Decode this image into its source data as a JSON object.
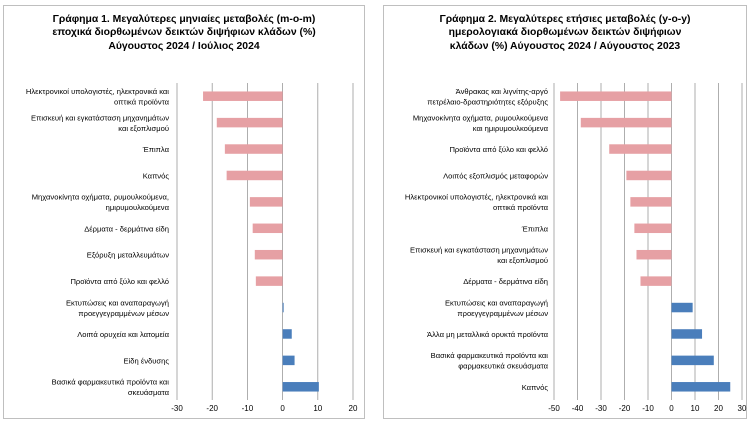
{
  "colors": {
    "negative": "#E6A0A4",
    "positive": "#4A7EBB",
    "gridline": "#9A9A9A",
    "border": "#BFBFBF"
  },
  "chart_data": [
    {
      "type": "bar",
      "orientation": "horizontal",
      "title_lines": [
        "Γράφημα 1. Μεγαλύτερες μηνιαίες μεταβολές (m-o-m)",
        "εποχικά διορθωμένων δεικτών διψήφιων κλάδων (%)",
        "Αύγουστος 2024 / Ιούλιος  2024"
      ],
      "categories": [
        [
          "Ηλεκτρονικοί υπολογιστές, ηλεκτρονικά και",
          "οπτικά προϊόντα"
        ],
        [
          "Επισκευή και εγκατάσταση μηχανημάτων",
          "και εξοπλισμού"
        ],
        [
          "Έπιπλα"
        ],
        [
          "Καπνός"
        ],
        [
          "Μηχανοκίνητα οχήματα, ρυμουλκούμενα,",
          "ημιρυμουλκούμενα"
        ],
        [
          "Δέρματα - δερμάτινα είδη"
        ],
        [
          "Εξόρυξη μεταλλευμάτων"
        ],
        [
          "Προϊόντα από ξύλο και φελλό"
        ],
        [
          "Εκτυπώσεις και αναπαραγωγή",
          "προεγγεγραμμένων μέσων"
        ],
        [
          "Λοιπά ορυχεία και λατομεία"
        ],
        [
          "Είδη ένδυσης"
        ],
        [
          "Βασικά φαρμακευτικά προϊόντα και",
          "σκευάσματα"
        ]
      ],
      "values": [
        -22.6,
        -18.7,
        -16.4,
        -15.9,
        -9.3,
        -8.5,
        -7.9,
        -7.6,
        0.3,
        2.6,
        3.4,
        10.3
      ],
      "xlim": [
        -30,
        20
      ],
      "xticks": [
        -30,
        -20,
        -10,
        0,
        10,
        20
      ],
      "grid": "vertical"
    },
    {
      "type": "bar",
      "orientation": "horizontal",
      "title_lines": [
        "Γράφημα 2. Μεγαλύτερες ετήσιες μεταβολές (y-o-y)",
        "ημερολογιακά διορθωμένων δεικτών διψήφιων",
        "κλάδων (%) Αύγουστος  2024 / Αύγουστος  2023"
      ],
      "categories": [
        [
          "Άνθρακας και λιγνίτης-αργό",
          "πετρέλαιο-δραστηριότητες εξόρυξης"
        ],
        [
          "Μηχανοκίνητα οχήματα, ρυμουλκούμενα",
          "και ημιρυμουλκούμενα"
        ],
        [
          "Προϊόντα από ξύλο και φελλό"
        ],
        [
          "Λοιπός εξοπλισμός μεταφορών"
        ],
        [
          "Ηλεκτρονικοί υπολογιστές, ηλεκτρονικά και",
          "οπτικά προϊόντα"
        ],
        [
          "Έπιπλα"
        ],
        [
          "Επισκευή και εγκατάσταση μηχανημάτων",
          "και εξοπλισμού"
        ],
        [
          "Δέρματα - δερμάτινα είδη"
        ],
        [
          "Εκτυπώσεις και αναπαραγωγή",
          "προεγγεγραμμένων μέσων"
        ],
        [
          "Άλλα μη μεταλλικά ορυκτά προϊόντα"
        ],
        [
          "Βασικά φαρμακευτικά προϊόντα και",
          "φαρμακευτικά σκευάσματα"
        ],
        [
          "Καπνός"
        ]
      ],
      "values": [
        -47.4,
        -38.6,
        -26.5,
        -19.2,
        -17.5,
        -15.8,
        -14.9,
        -13.2,
        9.0,
        13.0,
        18.0,
        25.0
      ],
      "xlim": [
        -50,
        30
      ],
      "xticks": [
        -50,
        -40,
        -30,
        -20,
        -10,
        0,
        10,
        20,
        30
      ],
      "grid": "vertical"
    }
  ]
}
